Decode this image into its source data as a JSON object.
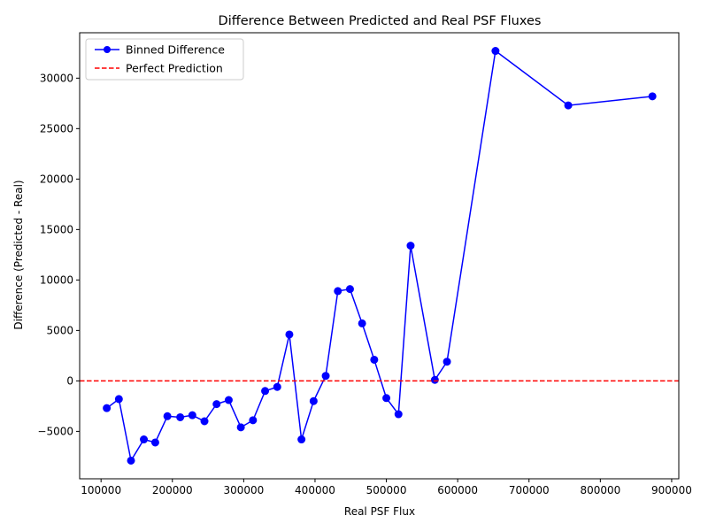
{
  "chart_data": {
    "type": "line",
    "title": "Difference Between Predicted and Real PSF Fluxes",
    "xlabel": "Real PSF Flux",
    "ylabel": "Difference (Predicted - Real)",
    "xlim": [
      70000,
      910000
    ],
    "ylim": [
      -9700,
      34500
    ],
    "xticks": [
      100000,
      200000,
      300000,
      400000,
      500000,
      600000,
      700000,
      800000,
      900000
    ],
    "yticks": [
      -5000,
      0,
      5000,
      10000,
      15000,
      20000,
      25000,
      30000
    ],
    "grid": false,
    "legend_position": "upper left",
    "series": [
      {
        "name": "Binned Difference",
        "color": "#0000ff",
        "marker": "circle",
        "linestyle": "solid",
        "x": [
          108000,
          125000,
          142000,
          160000,
          176000,
          193000,
          211000,
          228000,
          245000,
          262000,
          279000,
          296000,
          313000,
          330000,
          347000,
          364000,
          381000,
          398000,
          415000,
          432000,
          449000,
          466000,
          483000,
          500000,
          517000,
          534000,
          568000,
          585000,
          653000,
          755000,
          873000
        ],
        "y": [
          -2700,
          -1800,
          -7900,
          -5800,
          -6100,
          -3500,
          -3600,
          -3400,
          -4000,
          -2300,
          -1900,
          -4600,
          -3900,
          -1000,
          -600,
          4600,
          -5800,
          -2000,
          500,
          8900,
          9100,
          5700,
          2100,
          -1700,
          -3300,
          13400,
          100,
          1900,
          32700,
          27300,
          28200
        ]
      },
      {
        "name": "Perfect Prediction",
        "color": "#ff0000",
        "linestyle": "dashed",
        "y_constant": 0
      }
    ]
  }
}
